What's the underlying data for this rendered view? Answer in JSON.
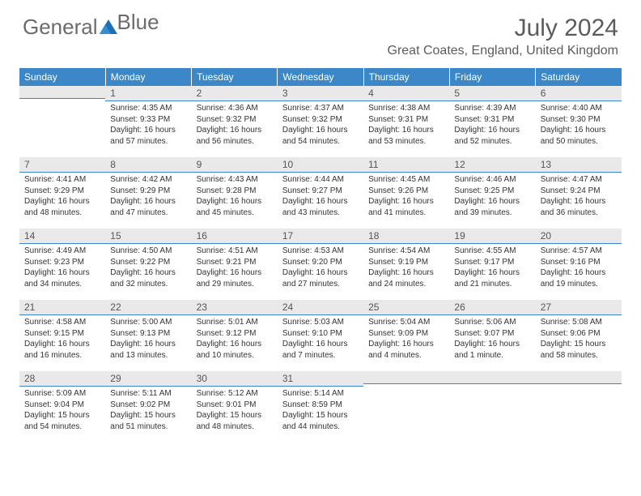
{
  "logo": {
    "text1": "General",
    "text2": "Blue"
  },
  "header": {
    "month_title": "July 2024",
    "location": "Great Coates, England, United Kingdom"
  },
  "colors": {
    "header_bg": "#3b87c8",
    "header_text": "#ffffff",
    "daynum_bg": "#e9e9e9",
    "daynum_border": "#3b87c8",
    "body_text": "#333333",
    "title_text": "#5b5b5b"
  },
  "day_headers": [
    "Sunday",
    "Monday",
    "Tuesday",
    "Wednesday",
    "Thursday",
    "Friday",
    "Saturday"
  ],
  "weeks": [
    [
      {
        "n": "",
        "sr": "",
        "ss": "",
        "d1": "",
        "d2": ""
      },
      {
        "n": "1",
        "sr": "Sunrise: 4:35 AM",
        "ss": "Sunset: 9:33 PM",
        "d1": "Daylight: 16 hours",
        "d2": "and 57 minutes."
      },
      {
        "n": "2",
        "sr": "Sunrise: 4:36 AM",
        "ss": "Sunset: 9:32 PM",
        "d1": "Daylight: 16 hours",
        "d2": "and 56 minutes."
      },
      {
        "n": "3",
        "sr": "Sunrise: 4:37 AM",
        "ss": "Sunset: 9:32 PM",
        "d1": "Daylight: 16 hours",
        "d2": "and 54 minutes."
      },
      {
        "n": "4",
        "sr": "Sunrise: 4:38 AM",
        "ss": "Sunset: 9:31 PM",
        "d1": "Daylight: 16 hours",
        "d2": "and 53 minutes."
      },
      {
        "n": "5",
        "sr": "Sunrise: 4:39 AM",
        "ss": "Sunset: 9:31 PM",
        "d1": "Daylight: 16 hours",
        "d2": "and 52 minutes."
      },
      {
        "n": "6",
        "sr": "Sunrise: 4:40 AM",
        "ss": "Sunset: 9:30 PM",
        "d1": "Daylight: 16 hours",
        "d2": "and 50 minutes."
      }
    ],
    [
      {
        "n": "7",
        "sr": "Sunrise: 4:41 AM",
        "ss": "Sunset: 9:29 PM",
        "d1": "Daylight: 16 hours",
        "d2": "and 48 minutes."
      },
      {
        "n": "8",
        "sr": "Sunrise: 4:42 AM",
        "ss": "Sunset: 9:29 PM",
        "d1": "Daylight: 16 hours",
        "d2": "and 47 minutes."
      },
      {
        "n": "9",
        "sr": "Sunrise: 4:43 AM",
        "ss": "Sunset: 9:28 PM",
        "d1": "Daylight: 16 hours",
        "d2": "and 45 minutes."
      },
      {
        "n": "10",
        "sr": "Sunrise: 4:44 AM",
        "ss": "Sunset: 9:27 PM",
        "d1": "Daylight: 16 hours",
        "d2": "and 43 minutes."
      },
      {
        "n": "11",
        "sr": "Sunrise: 4:45 AM",
        "ss": "Sunset: 9:26 PM",
        "d1": "Daylight: 16 hours",
        "d2": "and 41 minutes."
      },
      {
        "n": "12",
        "sr": "Sunrise: 4:46 AM",
        "ss": "Sunset: 9:25 PM",
        "d1": "Daylight: 16 hours",
        "d2": "and 39 minutes."
      },
      {
        "n": "13",
        "sr": "Sunrise: 4:47 AM",
        "ss": "Sunset: 9:24 PM",
        "d1": "Daylight: 16 hours",
        "d2": "and 36 minutes."
      }
    ],
    [
      {
        "n": "14",
        "sr": "Sunrise: 4:49 AM",
        "ss": "Sunset: 9:23 PM",
        "d1": "Daylight: 16 hours",
        "d2": "and 34 minutes."
      },
      {
        "n": "15",
        "sr": "Sunrise: 4:50 AM",
        "ss": "Sunset: 9:22 PM",
        "d1": "Daylight: 16 hours",
        "d2": "and 32 minutes."
      },
      {
        "n": "16",
        "sr": "Sunrise: 4:51 AM",
        "ss": "Sunset: 9:21 PM",
        "d1": "Daylight: 16 hours",
        "d2": "and 29 minutes."
      },
      {
        "n": "17",
        "sr": "Sunrise: 4:53 AM",
        "ss": "Sunset: 9:20 PM",
        "d1": "Daylight: 16 hours",
        "d2": "and 27 minutes."
      },
      {
        "n": "18",
        "sr": "Sunrise: 4:54 AM",
        "ss": "Sunset: 9:19 PM",
        "d1": "Daylight: 16 hours",
        "d2": "and 24 minutes."
      },
      {
        "n": "19",
        "sr": "Sunrise: 4:55 AM",
        "ss": "Sunset: 9:17 PM",
        "d1": "Daylight: 16 hours",
        "d2": "and 21 minutes."
      },
      {
        "n": "20",
        "sr": "Sunrise: 4:57 AM",
        "ss": "Sunset: 9:16 PM",
        "d1": "Daylight: 16 hours",
        "d2": "and 19 minutes."
      }
    ],
    [
      {
        "n": "21",
        "sr": "Sunrise: 4:58 AM",
        "ss": "Sunset: 9:15 PM",
        "d1": "Daylight: 16 hours",
        "d2": "and 16 minutes."
      },
      {
        "n": "22",
        "sr": "Sunrise: 5:00 AM",
        "ss": "Sunset: 9:13 PM",
        "d1": "Daylight: 16 hours",
        "d2": "and 13 minutes."
      },
      {
        "n": "23",
        "sr": "Sunrise: 5:01 AM",
        "ss": "Sunset: 9:12 PM",
        "d1": "Daylight: 16 hours",
        "d2": "and 10 minutes."
      },
      {
        "n": "24",
        "sr": "Sunrise: 5:03 AM",
        "ss": "Sunset: 9:10 PM",
        "d1": "Daylight: 16 hours",
        "d2": "and 7 minutes."
      },
      {
        "n": "25",
        "sr": "Sunrise: 5:04 AM",
        "ss": "Sunset: 9:09 PM",
        "d1": "Daylight: 16 hours",
        "d2": "and 4 minutes."
      },
      {
        "n": "26",
        "sr": "Sunrise: 5:06 AM",
        "ss": "Sunset: 9:07 PM",
        "d1": "Daylight: 16 hours",
        "d2": "and 1 minute."
      },
      {
        "n": "27",
        "sr": "Sunrise: 5:08 AM",
        "ss": "Sunset: 9:06 PM",
        "d1": "Daylight: 15 hours",
        "d2": "and 58 minutes."
      }
    ],
    [
      {
        "n": "28",
        "sr": "Sunrise: 5:09 AM",
        "ss": "Sunset: 9:04 PM",
        "d1": "Daylight: 15 hours",
        "d2": "and 54 minutes."
      },
      {
        "n": "29",
        "sr": "Sunrise: 5:11 AM",
        "ss": "Sunset: 9:02 PM",
        "d1": "Daylight: 15 hours",
        "d2": "and 51 minutes."
      },
      {
        "n": "30",
        "sr": "Sunrise: 5:12 AM",
        "ss": "Sunset: 9:01 PM",
        "d1": "Daylight: 15 hours",
        "d2": "and 48 minutes."
      },
      {
        "n": "31",
        "sr": "Sunrise: 5:14 AM",
        "ss": "Sunset: 8:59 PM",
        "d1": "Daylight: 15 hours",
        "d2": "and 44 minutes."
      },
      {
        "n": "",
        "sr": "",
        "ss": "",
        "d1": "",
        "d2": ""
      },
      {
        "n": "",
        "sr": "",
        "ss": "",
        "d1": "",
        "d2": ""
      },
      {
        "n": "",
        "sr": "",
        "ss": "",
        "d1": "",
        "d2": ""
      }
    ]
  ]
}
